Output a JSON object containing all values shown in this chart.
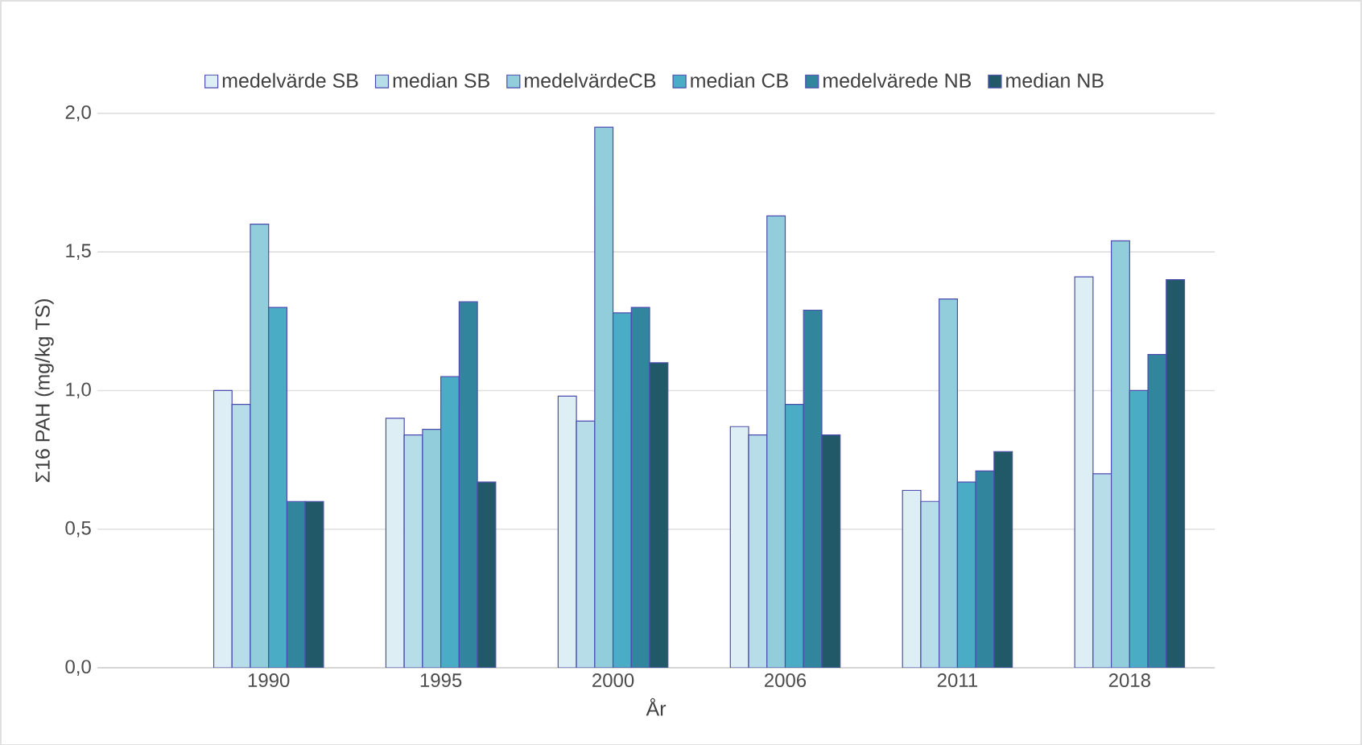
{
  "chart_data": {
    "type": "bar",
    "xlabel": "År",
    "ylabel": "Σ16 PAH  (mg/kg TS)",
    "categories": [
      "1990",
      "1995",
      "2000",
      "2006",
      "2011",
      "2018"
    ],
    "series": [
      {
        "name": "medelvärde SB",
        "color": "#deeef5",
        "values": [
          1.0,
          0.9,
          0.98,
          0.87,
          0.64,
          1.41
        ]
      },
      {
        "name": "median SB",
        "color": "#b7dde8",
        "values": [
          0.95,
          0.84,
          0.89,
          0.84,
          0.6,
          0.7
        ]
      },
      {
        "name": "medelvärdeCB",
        "color": "#92cddc",
        "values": [
          1.6,
          0.86,
          1.95,
          1.63,
          1.33,
          1.54
        ]
      },
      {
        "name": "median CB",
        "color": "#4bacc6",
        "values": [
          1.3,
          1.05,
          1.28,
          0.95,
          0.67,
          1.0
        ]
      },
      {
        "name": "medelvärede NB",
        "color": "#31859c",
        "values": [
          0.6,
          1.32,
          1.3,
          1.29,
          0.71,
          1.13
        ]
      },
      {
        "name": "median NB",
        "color": "#215968",
        "values": [
          0.6,
          0.67,
          1.1,
          0.84,
          0.78,
          1.4
        ]
      }
    ],
    "ylim": [
      0,
      2.0
    ],
    "yticks": [
      {
        "value": 0,
        "label": "0,0"
      },
      {
        "value": 0.5,
        "label": "0,5"
      },
      {
        "value": 1.0,
        "label": "1,0"
      },
      {
        "value": 1.5,
        "label": "1,5"
      },
      {
        "value": 2.0,
        "label": "2,0"
      }
    ],
    "grid": "y",
    "legend": "top"
  }
}
